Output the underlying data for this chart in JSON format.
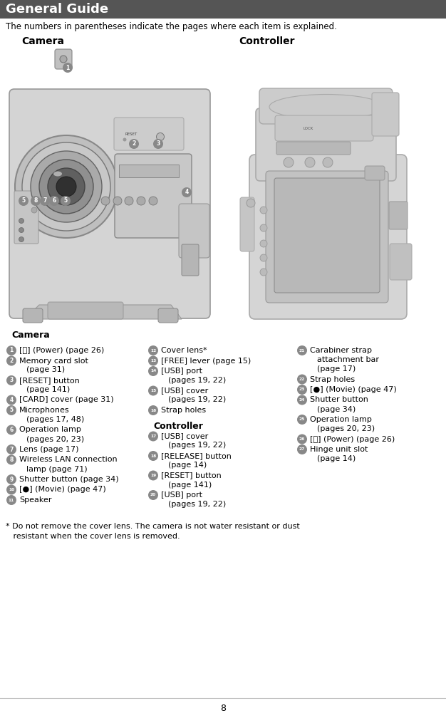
{
  "title": "General Guide",
  "title_bg_color": "#555555",
  "title_text_color": "#ffffff",
  "subtitle": "The numbers in parentheses indicate the pages where each item is explained.",
  "camera_label": "Camera",
  "controller_label": "Controller",
  "page_number": "8",
  "bg_color": "#ffffff",
  "text_color": "#000000",
  "circle_color": "#888888",
  "circle_text_color": "#ffffff",
  "col1_header": "Camera",
  "col2_ctrl_header": "Controller",
  "footnote_line1": "* Do not remove the cover lens. The camera is not water resistant or dust",
  "footnote_line2": "   resistant when the cover lens is removed.",
  "col1_items": [
    {
      "num": 1,
      "lines": [
        "[ⓡ] (Power) (page 26)"
      ]
    },
    {
      "num": 2,
      "lines": [
        "Memory card slot",
        "(page 31)"
      ]
    },
    {
      "num": 3,
      "lines": [
        "[RESET] button",
        "(page 141)"
      ]
    },
    {
      "num": 4,
      "lines": [
        "[CARD] cover (page 31)"
      ]
    },
    {
      "num": 5,
      "lines": [
        "Microphones",
        "(pages 17, 48)"
      ]
    },
    {
      "num": 6,
      "lines": [
        "Operation lamp",
        "(pages 20, 23)"
      ]
    },
    {
      "num": 7,
      "lines": [
        "Lens (page 17)"
      ]
    },
    {
      "num": 8,
      "lines": [
        "Wireless LAN connection",
        "lamp (page 71)"
      ]
    },
    {
      "num": 9,
      "lines": [
        "Shutter button (page 34)"
      ]
    },
    {
      "num": 10,
      "lines": [
        "[●] (Movie) (page 47)"
      ]
    },
    {
      "num": 11,
      "lines": [
        "Speaker"
      ]
    }
  ],
  "col2_cam_items": [
    {
      "num": 12,
      "lines": [
        "Cover lens*"
      ]
    },
    {
      "num": 13,
      "lines": [
        "[FREE] lever (page 15)"
      ]
    },
    {
      "num": 14,
      "lines": [
        "[USB] port",
        "(pages 19, 22)"
      ]
    },
    {
      "num": 15,
      "lines": [
        "[USB] cover",
        "(pages 19, 22)"
      ]
    },
    {
      "num": 16,
      "lines": [
        "Strap holes"
      ]
    }
  ],
  "col2_ctrl_items": [
    {
      "num": 17,
      "lines": [
        "[USB] cover",
        "(pages 19, 22)"
      ]
    },
    {
      "num": 18,
      "lines": [
        "[RELEASE] button",
        "(page 14)"
      ]
    },
    {
      "num": 19,
      "lines": [
        "[RESET] button",
        "(page 141)"
      ]
    },
    {
      "num": 20,
      "lines": [
        "[USB] port",
        "(pages 19, 22)"
      ]
    }
  ],
  "col3_items": [
    {
      "num": 21,
      "lines": [
        "Carabiner strap",
        "attachment bar",
        "(page 17)"
      ]
    },
    {
      "num": 22,
      "lines": [
        "Strap holes"
      ]
    },
    {
      "num": 23,
      "lines": [
        "[●] (Movie) (page 47)"
      ]
    },
    {
      "num": 24,
      "lines": [
        "Shutter button",
        "(page 34)"
      ]
    },
    {
      "num": 25,
      "lines": [
        "Operation lamp",
        "(pages 20, 23)"
      ]
    },
    {
      "num": 26,
      "lines": [
        "[ⓡ] (Power) (page 26)"
      ]
    },
    {
      "num": 27,
      "lines": [
        "Hinge unit slot",
        "(page 14)"
      ]
    }
  ],
  "diag_num_color": "#888888",
  "diag_num_text_color": "#ffffff"
}
